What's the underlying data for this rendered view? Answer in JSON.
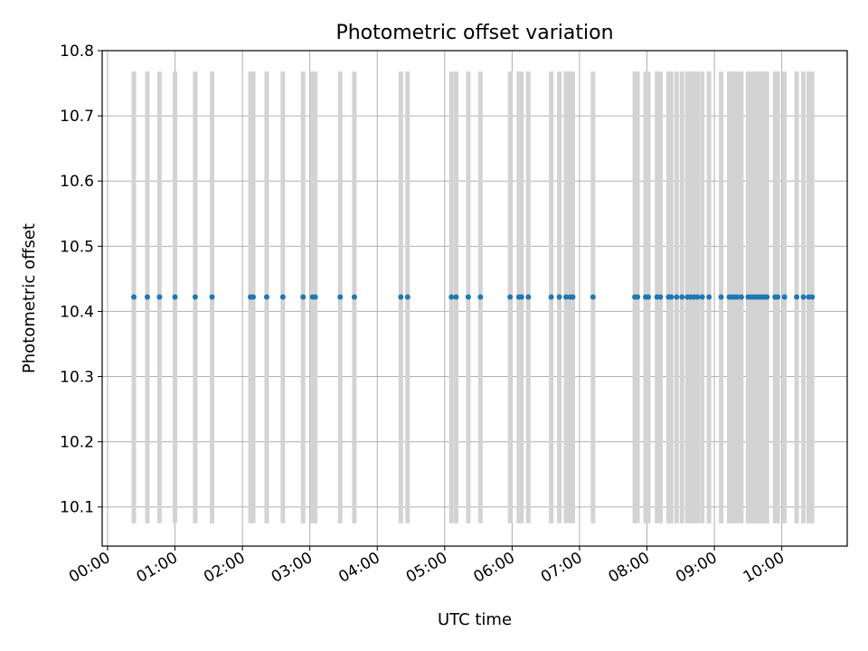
{
  "chart_data": {
    "type": "scatter",
    "title": "Photometric offset variation",
    "xlabel": "UTC time",
    "ylabel": "Photometric offset",
    "x_unit": "hours UTC",
    "xlim": [
      -0.08,
      10.97
    ],
    "ylim": [
      10.04,
      10.8
    ],
    "x_ticks": [
      0,
      1,
      2,
      3,
      4,
      5,
      6,
      7,
      8,
      9,
      10
    ],
    "x_tick_labels": [
      "00:00",
      "01:00",
      "02:00",
      "03:00",
      "04:00",
      "05:00",
      "06:00",
      "07:00",
      "08:00",
      "09:00",
      "10:00"
    ],
    "y_ticks": [
      10.1,
      10.2,
      10.3,
      10.4,
      10.5,
      10.6,
      10.7,
      10.8
    ],
    "y_tick_labels": [
      "10.1",
      "10.2",
      "10.3",
      "10.4",
      "10.5",
      "10.6",
      "10.7",
      "10.8"
    ],
    "grid": true,
    "colors": {
      "points": "#1f77b4",
      "bars": "#d3d3d3",
      "grid": "#b0b0b0"
    },
    "series": [
      {
        "marker": "point",
        "errorbar_low": 10.075,
        "errorbar_high": 10.768,
        "y": 10.422,
        "x": [
          0.39,
          0.59,
          0.77,
          1.0,
          1.3,
          1.55,
          2.12,
          2.16,
          2.36,
          2.6,
          2.9,
          3.04,
          3.08,
          3.45,
          3.66,
          4.35,
          4.45,
          5.1,
          5.17,
          5.35,
          5.53,
          5.97,
          6.1,
          6.14,
          6.24,
          6.58,
          6.7,
          6.8,
          6.86,
          6.9,
          7.2,
          7.82,
          7.86,
          7.98,
          8.02,
          8.15,
          8.2,
          8.32,
          8.36,
          8.44,
          8.52,
          8.6,
          8.65,
          8.7,
          8.75,
          8.82,
          8.92,
          9.1,
          9.22,
          9.26,
          9.3,
          9.34,
          9.4,
          9.5,
          9.54,
          9.58,
          9.62,
          9.66,
          9.7,
          9.74,
          9.78,
          9.9,
          9.94,
          10.04,
          10.22,
          10.32,
          10.4,
          10.45
        ]
      }
    ]
  }
}
